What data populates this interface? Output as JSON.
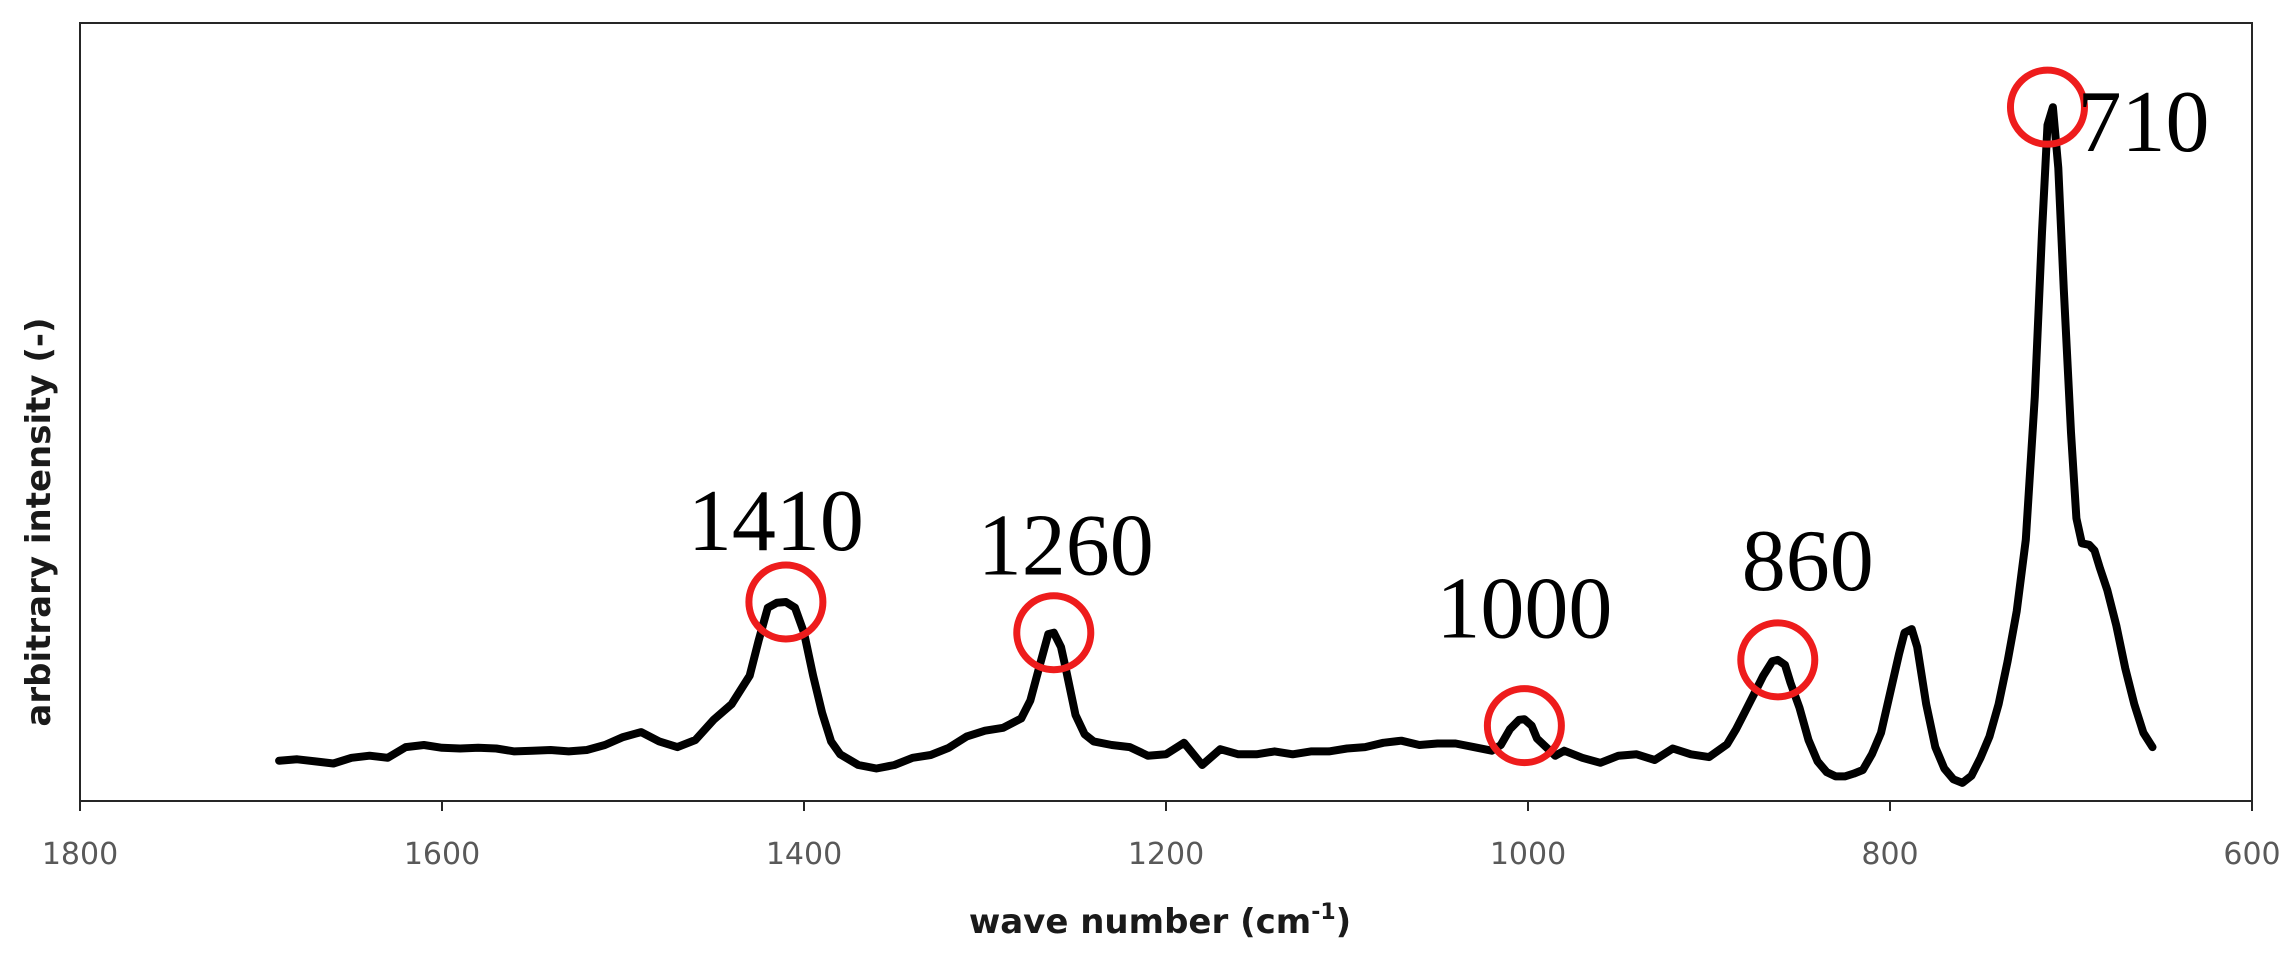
{
  "chart_data": {
    "type": "line",
    "title": "",
    "xlabel": "wave number (cm",
    "xlabel_sup": "-1",
    "xlabel_suffix": ")",
    "ylabel": "arbitrary intensity (-)",
    "xlim": [
      1800,
      600
    ],
    "ylim": [
      0,
      1
    ],
    "x_reversed": true,
    "grid": false,
    "legend": "none",
    "x_ticks": [
      1800,
      1600,
      1400,
      1200,
      1000,
      800,
      600
    ],
    "x_tick_labels": [
      "1800",
      "1600",
      "1400",
      "1200",
      "1000",
      "800",
      "600"
    ],
    "series": [
      {
        "color": "#000000",
        "x": [
          1690,
          1680,
          1670,
          1660,
          1650,
          1640,
          1630,
          1620,
          1610,
          1600,
          1590,
          1580,
          1570,
          1560,
          1550,
          1540,
          1530,
          1520,
          1510,
          1500,
          1490,
          1480,
          1470,
          1460,
          1450,
          1440,
          1430,
          1425,
          1420,
          1415,
          1410,
          1405,
          1400,
          1395,
          1390,
          1385,
          1380,
          1370,
          1360,
          1350,
          1340,
          1330,
          1320,
          1310,
          1300,
          1290,
          1280,
          1275,
          1270,
          1265,
          1262,
          1258,
          1255,
          1250,
          1245,
          1240,
          1230,
          1220,
          1210,
          1200,
          1190,
          1180,
          1170,
          1160,
          1150,
          1140,
          1130,
          1120,
          1110,
          1100,
          1090,
          1080,
          1070,
          1060,
          1050,
          1040,
          1030,
          1020,
          1015,
          1010,
          1005,
          1002,
          998,
          995,
          990,
          985,
          980,
          970,
          960,
          950,
          940,
          930,
          920,
          910,
          900,
          890,
          885,
          880,
          875,
          870,
          865,
          862,
          858,
          855,
          850,
          845,
          840,
          835,
          830,
          825,
          820,
          815,
          810,
          805,
          800,
          795,
          792,
          788,
          785,
          780,
          775,
          770,
          765,
          760,
          755,
          750,
          745,
          740,
          735,
          730,
          725,
          720,
          716,
          713,
          710,
          707,
          704,
          700,
          697,
          694,
          690,
          687,
          684,
          680,
          675,
          670,
          665,
          660,
          655
        ],
        "values": [
          0.041,
          0.043,
          0.04,
          0.037,
          0.045,
          0.048,
          0.045,
          0.06,
          0.063,
          0.059,
          0.058,
          0.059,
          0.058,
          0.054,
          0.055,
          0.056,
          0.054,
          0.056,
          0.063,
          0.074,
          0.081,
          0.068,
          0.06,
          0.07,
          0.098,
          0.12,
          0.16,
          0.21,
          0.255,
          0.262,
          0.263,
          0.255,
          0.22,
          0.16,
          0.108,
          0.068,
          0.05,
          0.035,
          0.03,
          0.035,
          0.045,
          0.049,
          0.059,
          0.075,
          0.083,
          0.087,
          0.1,
          0.125,
          0.172,
          0.218,
          0.22,
          0.2,
          0.165,
          0.105,
          0.078,
          0.068,
          0.063,
          0.06,
          0.048,
          0.05,
          0.066,
          0.035,
          0.057,
          0.05,
          0.05,
          0.054,
          0.05,
          0.054,
          0.054,
          0.058,
          0.06,
          0.066,
          0.069,
          0.063,
          0.065,
          0.065,
          0.06,
          0.055,
          0.063,
          0.085,
          0.098,
          0.099,
          0.09,
          0.072,
          0.06,
          0.048,
          0.055,
          0.045,
          0.038,
          0.048,
          0.05,
          0.042,
          0.058,
          0.05,
          0.046,
          0.064,
          0.085,
          0.11,
          0.135,
          0.16,
          0.18,
          0.182,
          0.175,
          0.15,
          0.115,
          0.07,
          0.04,
          0.025,
          0.019,
          0.019,
          0.023,
          0.028,
          0.05,
          0.08,
          0.135,
          0.19,
          0.22,
          0.225,
          0.2,
          0.12,
          0.06,
          0.03,
          0.015,
          0.01,
          0.02,
          0.045,
          0.075,
          0.12,
          0.18,
          0.25,
          0.35,
          0.55,
          0.78,
          0.93,
          0.955,
          0.87,
          0.7,
          0.5,
          0.38,
          0.345,
          0.343,
          0.335,
          0.31,
          0.28,
          0.23,
          0.17,
          0.12,
          0.08,
          0.06
        ]
      }
    ],
    "annotations": [
      {
        "text": "1410",
        "x": 1410,
        "y": 0.263
      },
      {
        "text": "1260",
        "x": 1262,
        "y": 0.22
      },
      {
        "text": "1000",
        "x": 1002,
        "y": 0.09
      },
      {
        "text": "860",
        "x": 862,
        "y": 0.182
      },
      {
        "text": "710",
        "x": 713,
        "y": 0.955
      }
    ]
  },
  "colors": {
    "line": "#000000",
    "marker_circle": "#ee1c1c",
    "axis": "#262626",
    "tick_text": "#595959"
  }
}
